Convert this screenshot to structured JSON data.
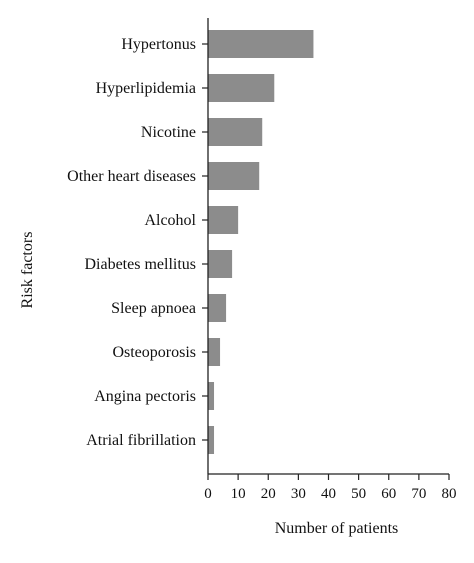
{
  "chart_data": {
    "type": "bar",
    "orientation": "horizontal",
    "title": "",
    "xlabel": "Number of patients",
    "ylabel": "Risk factors",
    "categories": [
      "Hypertonus",
      "Hyperlipidemia",
      "Nicotine",
      "Other heart diseases",
      "Alcohol",
      "Diabetes mellitus",
      "Sleep apnoea",
      "Osteoporosis",
      "Angina pectoris",
      "Atrial fibrillation"
    ],
    "values": [
      35,
      22,
      18,
      17,
      10,
      8,
      6,
      4,
      2,
      2
    ],
    "xlim": [
      0,
      80
    ],
    "xticks": [
      "0",
      "10",
      "20",
      "30",
      "40",
      "50",
      "60",
      "70",
      "80"
    ],
    "bar_color": "#8c8c8c",
    "axis_color": "#222222",
    "grid": false,
    "legend": "none"
  }
}
